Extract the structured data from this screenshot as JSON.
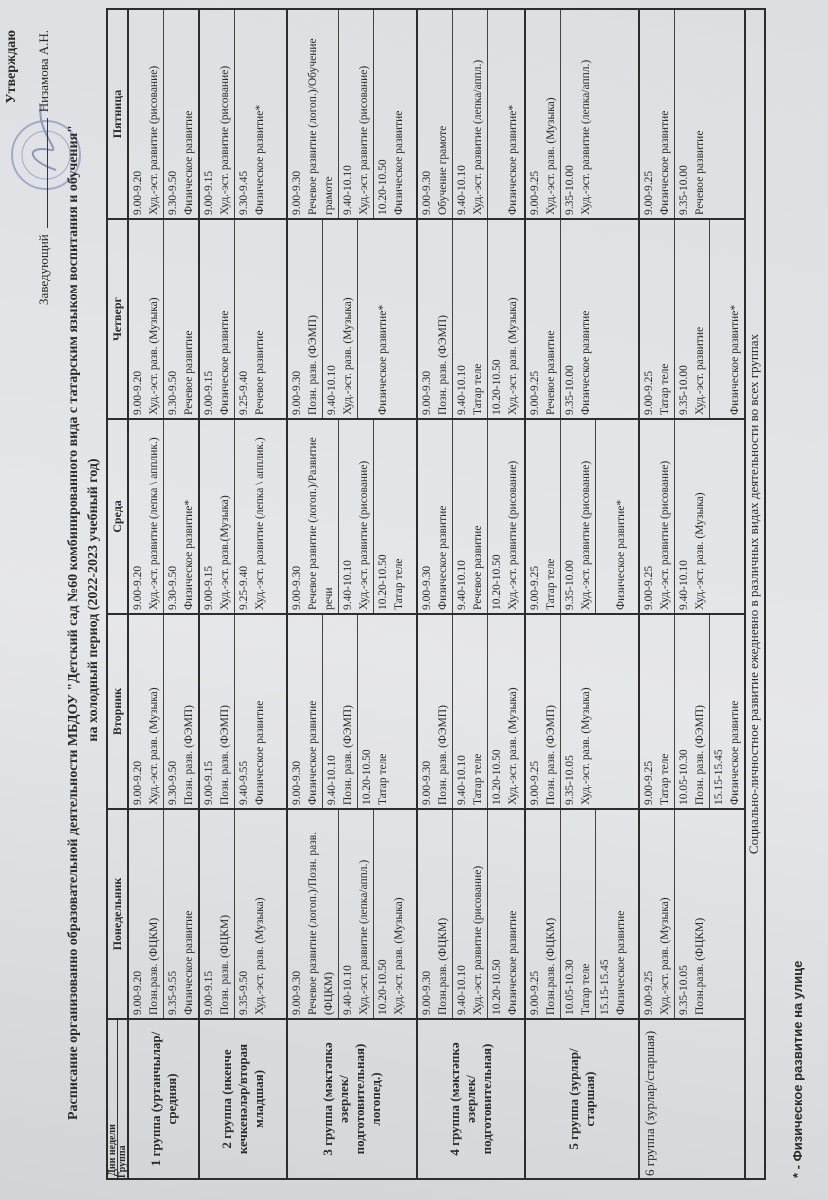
{
  "header": {
    "approve": "Утверждаю",
    "head_label": "Заведующий",
    "head_name": "Низамова А.Н.",
    "title": "Расписание  организованно образовательной деятельности   МБДОУ \"Детский сад №60 комбинированного вида с татарским языком воспитания и обучения\"",
    "subtitle": "на холодный период (2022-2023 учебный год)"
  },
  "table": {
    "corner_days": "Дни недели",
    "corner_group": "Группа",
    "days": [
      "Понедельник",
      "Вторник",
      "Среда",
      "Четверг",
      "Пятница"
    ],
    "groups": [
      {
        "name": "1 группа (уртанчылар/средняя)",
        "days": [
          [
            {
              "time": "9.00-9.20",
              "act": "Позн.разв. (ФЦКМ)"
            },
            {
              "time": "9.35-9.55",
              "act": "Физическое развитие"
            }
          ],
          [
            {
              "time": "9.00-9.20",
              "act": "Худ.-эст. разв. (Музыка)"
            },
            {
              "time": "9.30-9.50",
              "act": "Позн. разв. (ФЭМП)"
            }
          ],
          [
            {
              "time": "9.00-9.20",
              "act": "Худ.-эст. развитие (лепка \\ апплик.)"
            },
            {
              "time": "9.30-9.50",
              "act": "Физическое развитие*"
            }
          ],
          [
            {
              "time": "9.00-9.20",
              "act": "Худ.-эст. разв. (Музыка)"
            },
            {
              "time": "9.30-9.50",
              "act": "Речевое развитие"
            }
          ],
          [
            {
              "time": "9.00-9.20",
              "act": "Худ.-эст. развитие (рисование)"
            },
            {
              "time": "9.30-9.50",
              "act": "Физическое развитие"
            }
          ]
        ]
      },
      {
        "name": "2 группа (икенче кечкенәләр/вторая младшая)",
        "days": [
          [
            {
              "time": "9.00-9.15",
              "act": "Позн. разв. (ФЦКМ)"
            },
            {
              "time": "9.35-9.50",
              "act": "Худ.-эст. разв. (Музыка)"
            }
          ],
          [
            {
              "time": "9.00-9.15",
              "act": "Позн. разв. (ФЭМП)"
            },
            {
              "time": "9.40-9.55",
              "act": "Физическое развитие"
            }
          ],
          [
            {
              "time": "9.00-9.15",
              "act": "Худ.-эст. разв.(Музыка)"
            },
            {
              "time": "9.25-9.40",
              "act": "Худ.-эст. развитие (лепка \\ апплик.)"
            }
          ],
          [
            {
              "time": "9.00-9.15",
              "act": "Физическое развитие"
            },
            {
              "time": "9.25-9.40",
              "act": "Речевое развитие"
            }
          ],
          [
            {
              "time": "9.00-9.15",
              "act": "Худ.-эст. развитие  (рисование)"
            },
            {
              "time": "9.30-9.45",
              "act": "Физическое развитие*"
            }
          ]
        ]
      },
      {
        "name": "3 группа (мәктәпкә әзерлек/подготовительная) логопед.)",
        "days": [
          [
            {
              "time": "9.00-9.30",
              "act": "Речевое развитие (логоп.)/Позн. разв.(ФЦКМ)"
            },
            {
              "time": "9.40-10.10",
              "act": "Худ.-эст. развитие  (лепка/аппл.)"
            },
            {
              "time": "10.20-10.50",
              "act": "Худ.-эст. разв. (Музыка)"
            }
          ],
          [
            {
              "time": "9.00-9.30",
              "act": "Физическое развитие"
            },
            {
              "time": "9.40-10.10",
              "act": "Позн. разв. (ФЭМП)"
            },
            {
              "time": "10.20-10.50",
              "act": "Татар теле"
            }
          ],
          [
            {
              "time": "9.00-9.30",
              "act": "Речевое развитие (логоп.)/Развитие речи"
            },
            {
              "time": "9.40-10.10",
              "act": "Худ.-эст. развитие  (рисование)"
            },
            {
              "time": "10.20-10.50",
              "act": "Татар теле"
            }
          ],
          [
            {
              "time": "9.00-9.30",
              "act": "Позн. разв. (ФЭМП)"
            },
            {
              "time": "9.40-10.10",
              "act": "Худ.-эст. разв. (Музыка)"
            },
            {
              "time": "",
              "act": "Физическое развитие*"
            }
          ],
          [
            {
              "time": "9.00-9.30",
              "act": "Речевое развитие (логоп.)/Обучение грамоте"
            },
            {
              "time": "9.40-10.10",
              "act": "Худ.-эст. развитие  (рисование)"
            },
            {
              "time": "10.20-10.50",
              "act": "Физическое развитие"
            }
          ]
        ]
      },
      {
        "name": "4 группа (мәктәпкә әзерлек/подготовительная)",
        "days": [
          [
            {
              "time": "9.00-9.30",
              "act": "Позн.разв. (ФЦКМ)"
            },
            {
              "time": "9.40-10.10",
              "act": "Худ.-эст. развитие  (рисование)"
            },
            {
              "time": "10.20-10.50",
              "act": "Физическое развитие"
            }
          ],
          [
            {
              "time": "9.00-9.30",
              "act": "Позн. разв. (ФЭМП)"
            },
            {
              "time": "9.40-10.10",
              "act": "Татар теле"
            },
            {
              "time": "10.20-10.50",
              "act": "Худ.-эст. разв. (Музыка)"
            }
          ],
          [
            {
              "time": "9.00-9.30",
              "act": "Физическое развитие"
            },
            {
              "time": "9.40-10.10",
              "act": "Речевое развитие"
            },
            {
              "time": "10.20-10.50",
              "act": "Худ.-эст. развитие  (рисование)"
            }
          ],
          [
            {
              "time": "9.00-9.30",
              "act": "Позн. разв. (ФЭМП)"
            },
            {
              "time": "9.40-10.10",
              "act": "Татар теле"
            },
            {
              "time": "10.20-10.50",
              "act": "Худ.-эст. разв. (Музыка)"
            }
          ],
          [
            {
              "time": "9.00-9.30",
              "act": "Обучение грамоте"
            },
            {
              "time": "9.40-10.10",
              "act": "Худ.-эст. развитие  (лепка/аппл.)"
            },
            {
              "time": "",
              "act": "Физическое развитие*"
            }
          ]
        ]
      },
      {
        "name": "5 группа (зурлар/старшая)",
        "days": [
          [
            {
              "time": "9.00-9.25",
              "act": "Позн.разв. (ФЦКМ)"
            },
            {
              "time": "10.05-10.30",
              "act": "Татар теле"
            },
            {
              "time": "15.15-15.45",
              "act": "Физическое развитие"
            }
          ],
          [
            {
              "time": "9.00-9.25",
              "act": "Позн. разв. (ФЭМП)"
            },
            {
              "time": "9.35-10.05",
              "act": "Худ.-эст. разв. (Музыка)"
            }
          ],
          [
            {
              "time": "9.00-9.25",
              "act": "Татар теле"
            },
            {
              "time": "9.35-10.00",
              "act": "Худ.-эст. развитие  (рисование)"
            },
            {
              "time": "",
              "act": "Физическое развитие*"
            }
          ],
          [
            {
              "time": "9.00-9.25",
              "act": "Речевое развитие"
            },
            {
              "time": "9.35-10.00",
              "act": "Физическое развитие"
            }
          ],
          [
            {
              "time": "9.00-9.25",
              "act": "Худ.-эст. разв. (Музыка)"
            },
            {
              "time": "9.35-10.00",
              "act": "Худ.-эст. развитие  (лепка/аппл.)"
            }
          ]
        ]
      },
      {
        "name": "6 группа (зурлар/старшая)",
        "days": [
          [
            {
              "time": "9.00-9.25",
              "act": "Худ.-эст. разв. (Музыка)"
            },
            {
              "time": "9.35-10.05",
              "act": "Позн.разв. (ФЦКМ)"
            }
          ],
          [
            {
              "time": "9.00-9.25",
              "act": "Татар теле"
            },
            {
              "time": "10.05-10.30",
              "act": "Позн. разв. (ФЭМП)"
            },
            {
              "time": "15.15-15.45",
              "act": "Физическое развитие"
            }
          ],
          [
            {
              "time": "9.00-9.25",
              "act": "Худ.-эст. развитие  (рисование)"
            },
            {
              "time": "9.40-10.10",
              "act": "Худ.-эст. разв. (Музыка)"
            }
          ],
          [
            {
              "time": "9.00-9.25",
              "act": "Татар теле"
            },
            {
              "time": "9.35-10.00",
              "act": "Худ.-эст. развитие"
            },
            {
              "time": "",
              "act": "Физическое развитие*"
            }
          ],
          [
            {
              "time": "9.00-9.25",
              "act": "Физическое развитие"
            },
            {
              "time": "9.35-10.00",
              "act": "Речевое развитие"
            }
          ]
        ]
      }
    ],
    "footer": "Социально-личностное развитие  ежедневно в различных видах деятельности во всех группах"
  },
  "footnote": "* - Физическое развитие на улице",
  "colors": {
    "ink": "#2a2a2c",
    "stamp": "#6a7fb0",
    "paper": "#e2e3e6"
  }
}
